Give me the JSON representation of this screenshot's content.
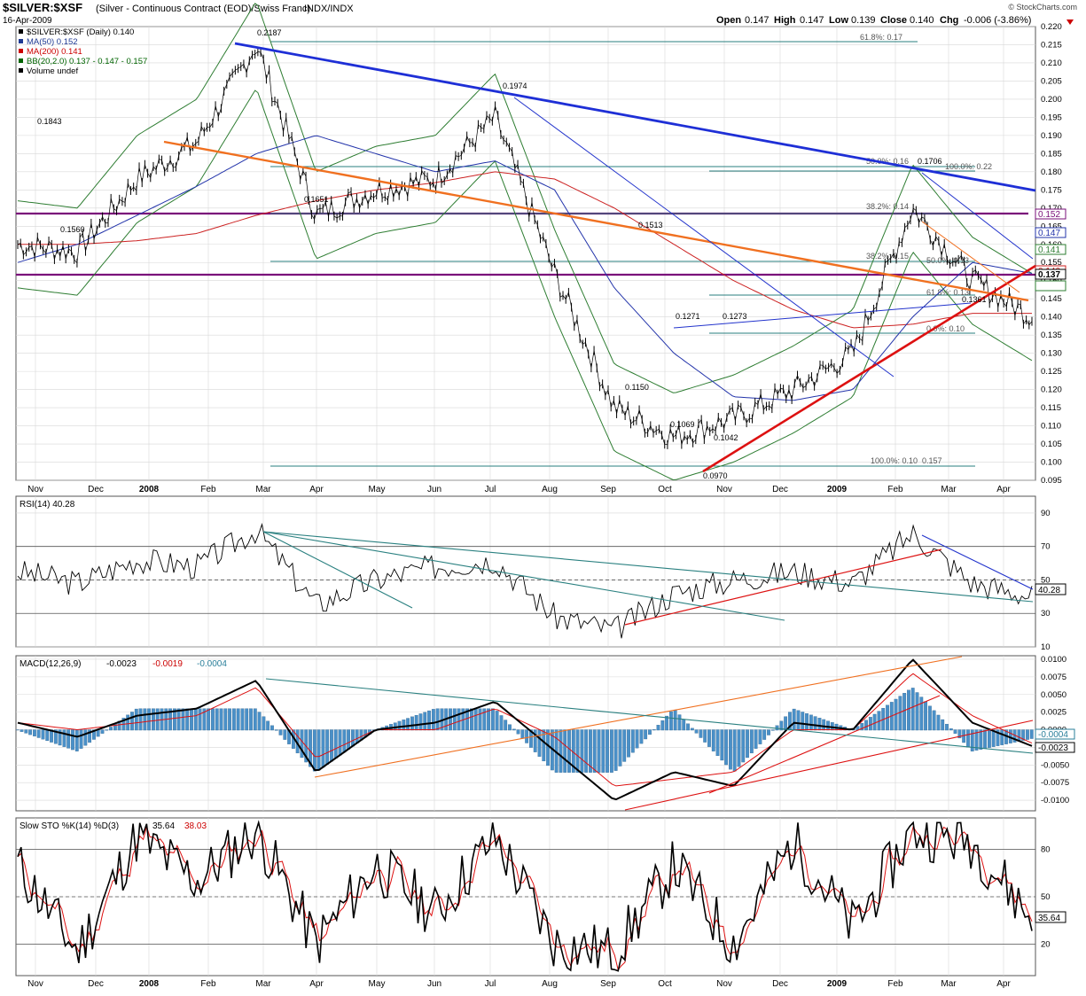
{
  "header": {
    "symbol": "$SILVER:$XSF",
    "description": "(Silver - Continuous Contract (EOD)/Swiss Franc)",
    "exchange": "INDX/INDX",
    "date": "16-Apr-2009",
    "watermark": "© StockCharts.com",
    "open_label": "Open",
    "open": "0.147",
    "high_label": "High",
    "high": "0.147",
    "low_label": "Low",
    "low": "0.139",
    "close_label": "Close",
    "close": "0.140",
    "chg_label": "Chg",
    "chg": "-0.006 (-3.86%)"
  },
  "price_legend": [
    {
      "text": "$SILVER:$XSF (Daily) 0.140",
      "color": "#000000"
    },
    {
      "text": "MA(50) 0.152",
      "color": "#1f3a93"
    },
    {
      "text": "MA(200) 0.141",
      "color": "#cc0000"
    },
    {
      "text": "BB(20,2.0) 0.137 - 0.147 - 0.157",
      "color": "#006400"
    },
    {
      "text": "Volume undef",
      "color": "#000000"
    }
  ],
  "colors": {
    "price": "#000000",
    "ma50": "#2233aa",
    "ma200": "#cc2222",
    "bb": "#2e7d32",
    "trend_blue": "#1e2fd6",
    "trend_orange": "#f07020",
    "trend_red": "#dd1111",
    "purple": "#7a0f7a",
    "teal": "#2a8080",
    "macd_hist": "#4a90c8",
    "grid": "#d8d8d8"
  },
  "x_axis_labels": [
    "Nov",
    "Dec",
    "2008",
    "Feb",
    "Mar",
    "Apr",
    "May",
    "Jun",
    "Jul",
    "Aug",
    "Sep",
    "Oct",
    "Nov",
    "Dec",
    "2009",
    "Feb",
    "Mar",
    "Apr"
  ],
  "chart_data": [
    {
      "type": "line",
      "title": "$SILVER:$XSF (Daily)",
      "ylim": [
        0.095,
        0.22
      ],
      "y_ticks": [
        "0.220",
        "0.215",
        "0.210",
        "0.205",
        "0.200",
        "0.195",
        "0.190",
        "0.185",
        "0.180",
        "0.175",
        "0.170",
        "0.165",
        "0.160",
        "0.155",
        "0.150",
        "0.145",
        "0.140",
        "0.135",
        "0.130",
        "0.125",
        "0.120",
        "0.115",
        "0.110",
        "0.105",
        "0.100",
        "0.095"
      ],
      "x": [
        "Nov 2007",
        "Dec 2007",
        "Jan 2008",
        "Feb 2008",
        "Mar 2008",
        "Apr 2008",
        "May 2008",
        "Jun 2008",
        "Jul 2008",
        "Aug 2008",
        "Sep 2008",
        "Oct 2008",
        "Nov 2008",
        "Dec 2008",
        "Jan 2009",
        "Feb 2009",
        "Mar 2009",
        "Apr 2009"
      ],
      "series": [
        {
          "name": "$SILVER:$XSF",
          "values": [
            0.16,
            0.158,
            0.178,
            0.188,
            0.215,
            0.168,
            0.175,
            0.178,
            0.195,
            0.152,
            0.115,
            0.107,
            0.112,
            0.12,
            0.13,
            0.17,
            0.15,
            0.14
          ]
        },
        {
          "name": "MA(50)",
          "values": [
            0.155,
            0.16,
            0.168,
            0.176,
            0.185,
            0.19,
            0.185,
            0.18,
            0.183,
            0.175,
            0.148,
            0.13,
            0.118,
            0.117,
            0.12,
            0.14,
            0.155,
            0.152
          ]
        },
        {
          "name": "MA(200)",
          "values": [
            0.16,
            0.16,
            0.161,
            0.163,
            0.168,
            0.172,
            0.175,
            0.177,
            0.18,
            0.178,
            0.17,
            0.16,
            0.15,
            0.142,
            0.137,
            0.138,
            0.141,
            0.141
          ]
        }
      ],
      "annotations": [
        "0.2187",
        "0.1974",
        "0.1843",
        "0.1651",
        "0.1560",
        "0.1513",
        "0.1271",
        "0.1273",
        "0.1150",
        "0.1069",
        "0.1042",
        "0.0970",
        "0.1706",
        "0.1361",
        "100.0%: 0.22",
        "61.8%: 0.17",
        "50.0%: 0.16",
        "38.2%: 0.14",
        "38.2%: 0.15",
        "50.0%: 0.13",
        "61.8%: 0.13",
        "0.0%: 0.10",
        "100.0%: 0.10",
        "0.157",
        "0.152",
        "0.147",
        "0.141",
        "0.140",
        "0.137"
      ]
    },
    {
      "type": "line",
      "title": "RSI(14) 40.28",
      "ylim": [
        10,
        100
      ],
      "y_ticks": [
        "90",
        "70",
        "50",
        "30",
        "10"
      ],
      "series": [
        {
          "name": "RSI(14)",
          "values": [
            55,
            48,
            62,
            58,
            80,
            35,
            50,
            58,
            62,
            28,
            20,
            42,
            50,
            55,
            48,
            78,
            48,
            40.28
          ]
        }
      ],
      "current_label": "40.28"
    },
    {
      "type": "line",
      "title": "MACD(12,26,9)",
      "values_text": [
        "-0.0023",
        "-0.0019",
        "-0.0004"
      ],
      "ylim": [
        -0.0115,
        0.0105
      ],
      "y_ticks": [
        "0.0100",
        "0.0075",
        "0.0050",
        "0.0025",
        "0.0000",
        "-0.0025",
        "-0.0050",
        "-0.0075",
        "-0.0100"
      ],
      "series": [
        {
          "name": "MACD",
          "values": [
            0.001,
            -0.001,
            0.002,
            0.003,
            0.007,
            -0.006,
            0.0,
            0.001,
            0.004,
            -0.003,
            -0.01,
            -0.006,
            -0.008,
            0.001,
            0.0,
            0.01,
            0.001,
            -0.0023
          ]
        },
        {
          "name": "Signal",
          "values": [
            0.001,
            0.0,
            0.001,
            0.002,
            0.006,
            -0.004,
            0.0,
            0.0,
            0.003,
            -0.001,
            -0.008,
            -0.007,
            -0.006,
            0.0,
            0.0,
            0.008,
            0.002,
            -0.0019
          ]
        }
      ],
      "current_labels": [
        "-0.0004",
        "-0.0023"
      ]
    },
    {
      "type": "line",
      "title": "Slow STO %K(14) %D(3)",
      "values_text": [
        "35.64",
        "38.03"
      ],
      "ylim": [
        0,
        100
      ],
      "y_ticks": [
        "80",
        "50",
        "20"
      ],
      "series": [
        {
          "name": "%K",
          "values": [
            70,
            15,
            88,
            60,
            92,
            20,
            70,
            40,
            88,
            20,
            15,
            70,
            20,
            85,
            30,
            92,
            85,
            35.64
          ]
        },
        {
          "name": "%D",
          "values": [
            68,
            18,
            85,
            62,
            90,
            24,
            68,
            42,
            85,
            24,
            18,
            68,
            24,
            82,
            34,
            90,
            82,
            38.03
          ]
        }
      ],
      "current_label": "35.64"
    }
  ]
}
